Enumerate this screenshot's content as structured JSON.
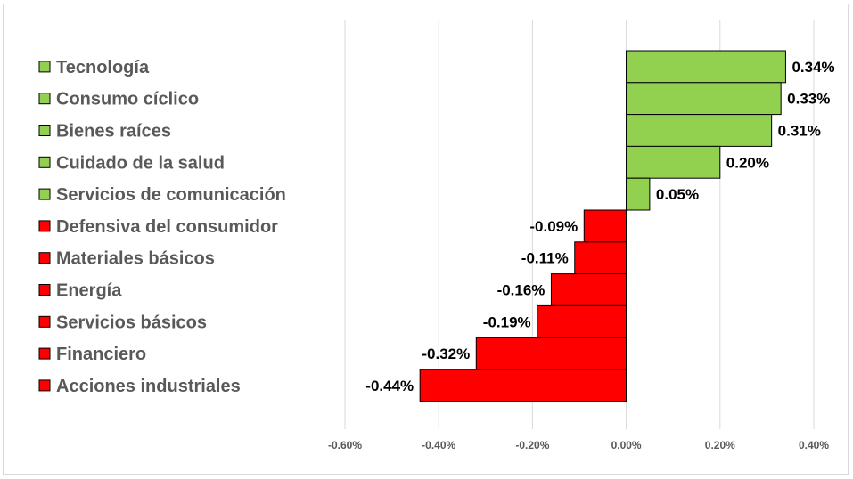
{
  "chart_data": {
    "type": "bar",
    "orientation": "horizontal",
    "categories": [
      "Tecnología",
      "Consumo cíclico",
      "Bienes raíces",
      "Cuidado de la salud",
      "Servicios de comunicación",
      "Defensiva del consumidor",
      "Materiales básicos",
      "Energía",
      "Servicios básicos",
      "Financiero",
      "Acciones industriales"
    ],
    "values": [
      0.34,
      0.33,
      0.31,
      0.2,
      0.05,
      -0.09,
      -0.11,
      -0.16,
      -0.19,
      -0.32,
      -0.44
    ],
    "value_labels": [
      "0.34%",
      "0.33%",
      "0.31%",
      "0.20%",
      "0.05%",
      "-0.09%",
      "-0.11%",
      "-0.16%",
      "-0.19%",
      "-0.32%",
      "-0.44%"
    ],
    "xlim": [
      -0.6,
      0.4
    ],
    "xticks": [
      -0.6,
      -0.4,
      -0.2,
      0.0,
      0.2,
      0.4
    ],
    "xtick_labels": [
      "-0.60%",
      "-0.40%",
      "-0.20%",
      "0.00%",
      "0.20%",
      "0.40%"
    ],
    "title": "",
    "xlabel": "",
    "ylabel": "",
    "grid": "vertical",
    "legend": "left",
    "colors": {
      "positive": "#92d050",
      "negative": "#ff0000",
      "bar_outline": "#000000",
      "gridline": "#d9d9d9",
      "axis_text": "#595959"
    }
  }
}
